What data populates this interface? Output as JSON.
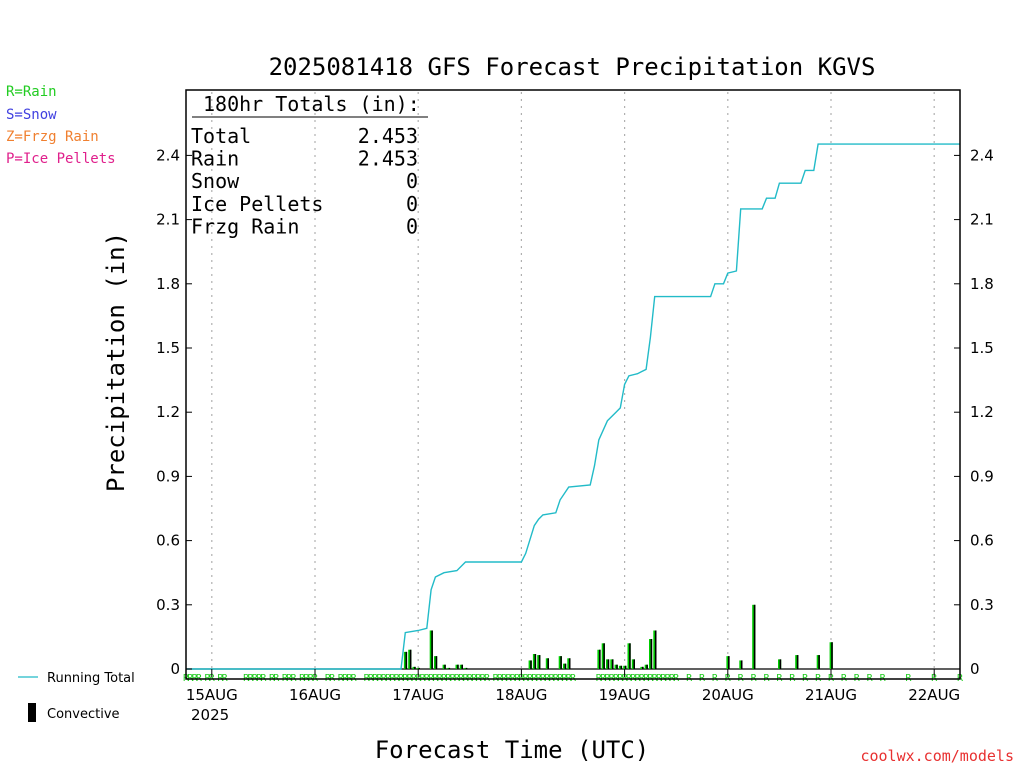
{
  "chart_data": {
    "type": "bar+line",
    "title": "2025081418 GFS Forecast Precipitation KGVS",
    "xlabel": "Forecast Time (UTC)",
    "ylabel": "Precipitation (in)",
    "ylim": [
      0,
      2.6
    ],
    "yticks": [
      0,
      0.3,
      0.6,
      0.9,
      1.2,
      1.5,
      1.8,
      2.1,
      2.4
    ],
    "ytick_labels": [
      "0",
      "0.3",
      "0.6",
      "0.9",
      "1.2",
      "1.5",
      "1.8",
      "2.1",
      "2.4"
    ],
    "xlim_hours": [
      0,
      180
    ],
    "x_ticks": [
      {
        "label": "15AUG",
        "hour": 6
      },
      {
        "label": "16AUG",
        "hour": 30
      },
      {
        "label": "17AUG",
        "hour": 54
      },
      {
        "label": "18AUG",
        "hour": 78
      },
      {
        "label": "19AUG",
        "hour": 102
      },
      {
        "label": "20AUG",
        "hour": 126
      },
      {
        "label": "21AUG",
        "hour": 150
      },
      {
        "label": "22AUG",
        "hour": 174
      }
    ],
    "year_label": "2025",
    "grid": "vertical-dotted",
    "type_legend": [
      {
        "label": "R=Rain",
        "color": "#22cc22"
      },
      {
        "label": "S=Snow",
        "color": "#4040e0"
      },
      {
        "label": "Z=Frzg Rain",
        "color": "#f08030"
      },
      {
        "label": "P=Ice Pellets",
        "color": "#e0208c"
      }
    ],
    "series_legend": {
      "running_total": "Running Total",
      "convective": "Convective"
    },
    "colors": {
      "running_total": "#22bbc8",
      "bar_fill": "#00cc00",
      "convective": "#000000",
      "rain_marker": "#22cc22"
    },
    "totals_box": {
      "title": "180hr Totals (in):",
      "rows": [
        {
          "label": "Total",
          "value": "2.453"
        },
        {
          "label": "Rain",
          "value": "2.453"
        },
        {
          "label": "Snow",
          "value": "0"
        },
        {
          "label": "Ice Pellets",
          "value": "0"
        },
        {
          "label": "Frzg Rain",
          "value": "0"
        }
      ]
    },
    "running_total": [
      {
        "hour": 0,
        "value": 0
      },
      {
        "hour": 50,
        "value": 0
      },
      {
        "hour": 51,
        "value": 0.17
      },
      {
        "hour": 54,
        "value": 0.18
      },
      {
        "hour": 56,
        "value": 0.19
      },
      {
        "hour": 57,
        "value": 0.37
      },
      {
        "hour": 58,
        "value": 0.43
      },
      {
        "hour": 60,
        "value": 0.45
      },
      {
        "hour": 63,
        "value": 0.46
      },
      {
        "hour": 65,
        "value": 0.5
      },
      {
        "hour": 78,
        "value": 0.5
      },
      {
        "hour": 79,
        "value": 0.54
      },
      {
        "hour": 81,
        "value": 0.67
      },
      {
        "hour": 82,
        "value": 0.7
      },
      {
        "hour": 83,
        "value": 0.72
      },
      {
        "hour": 86,
        "value": 0.73
      },
      {
        "hour": 87,
        "value": 0.79
      },
      {
        "hour": 88,
        "value": 0.82
      },
      {
        "hour": 89,
        "value": 0.85
      },
      {
        "hour": 94,
        "value": 0.86
      },
      {
        "hour": 95,
        "value": 0.95
      },
      {
        "hour": 96,
        "value": 1.07
      },
      {
        "hour": 98,
        "value": 1.16
      },
      {
        "hour": 100,
        "value": 1.2
      },
      {
        "hour": 101,
        "value": 1.22
      },
      {
        "hour": 102,
        "value": 1.33
      },
      {
        "hour": 103,
        "value": 1.37
      },
      {
        "hour": 105,
        "value": 1.38
      },
      {
        "hour": 106,
        "value": 1.39
      },
      {
        "hour": 107,
        "value": 1.4
      },
      {
        "hour": 108,
        "value": 1.55
      },
      {
        "hour": 109,
        "value": 1.74
      },
      {
        "hour": 122,
        "value": 1.74
      },
      {
        "hour": 123,
        "value": 1.8
      },
      {
        "hour": 125,
        "value": 1.8
      },
      {
        "hour": 126,
        "value": 1.85
      },
      {
        "hour": 128,
        "value": 1.86
      },
      {
        "hour": 129,
        "value": 2.15
      },
      {
        "hour": 134,
        "value": 2.15
      },
      {
        "hour": 135,
        "value": 2.2
      },
      {
        "hour": 137,
        "value": 2.2
      },
      {
        "hour": 138,
        "value": 2.27
      },
      {
        "hour": 143,
        "value": 2.27
      },
      {
        "hour": 144,
        "value": 2.33
      },
      {
        "hour": 146,
        "value": 2.33
      },
      {
        "hour": 147,
        "value": 2.453
      },
      {
        "hour": 180,
        "value": 2.453
      }
    ],
    "period_precip": [
      {
        "hour": 51,
        "value": 0.08
      },
      {
        "hour": 52,
        "value": 0.09
      },
      {
        "hour": 53,
        "value": 0.01
      },
      {
        "hour": 54,
        "value": 0.005
      },
      {
        "hour": 57,
        "value": 0.18
      },
      {
        "hour": 58,
        "value": 0.06
      },
      {
        "hour": 60,
        "value": 0.02
      },
      {
        "hour": 61,
        "value": 0.005
      },
      {
        "hour": 63,
        "value": 0.02
      },
      {
        "hour": 64,
        "value": 0.02
      },
      {
        "hour": 65,
        "value": 0.005
      },
      {
        "hour": 80,
        "value": 0.04
      },
      {
        "hour": 81,
        "value": 0.07
      },
      {
        "hour": 82,
        "value": 0.065
      },
      {
        "hour": 84,
        "value": 0.05
      },
      {
        "hour": 87,
        "value": 0.06
      },
      {
        "hour": 88,
        "value": 0.025
      },
      {
        "hour": 89,
        "value": 0.05
      },
      {
        "hour": 96,
        "value": 0.09
      },
      {
        "hour": 97,
        "value": 0.12
      },
      {
        "hour": 98,
        "value": 0.045
      },
      {
        "hour": 99,
        "value": 0.045
      },
      {
        "hour": 100,
        "value": 0.02
      },
      {
        "hour": 101,
        "value": 0.015
      },
      {
        "hour": 102,
        "value": 0.015
      },
      {
        "hour": 103,
        "value": 0.12
      },
      {
        "hour": 104,
        "value": 0.045
      },
      {
        "hour": 106,
        "value": 0.01
      },
      {
        "hour": 107,
        "value": 0.02
      },
      {
        "hour": 108,
        "value": 0.14
      },
      {
        "hour": 109,
        "value": 0.18
      },
      {
        "hour": 126,
        "value": 0.06
      },
      {
        "hour": 129,
        "value": 0.04
      },
      {
        "hour": 132,
        "value": 0.3
      },
      {
        "hour": 138,
        "value": 0.045
      },
      {
        "hour": 142,
        "value": 0.065
      },
      {
        "hour": 147,
        "value": 0.065
      },
      {
        "hour": 150,
        "value": 0.125
      }
    ],
    "rain_marker_hours": [
      0,
      1,
      2,
      3,
      5,
      6,
      8,
      9,
      14,
      15,
      16,
      17,
      18,
      20,
      21,
      23,
      24,
      25,
      27,
      28,
      29,
      30,
      33,
      34,
      36,
      37,
      38,
      39,
      42,
      43,
      44,
      45,
      46,
      47,
      48,
      49,
      50,
      51,
      52,
      53,
      54,
      55,
      56,
      57,
      58,
      59,
      60,
      61,
      62,
      63,
      64,
      65,
      66,
      67,
      68,
      69,
      70,
      72,
      73,
      74,
      75,
      76,
      77,
      78,
      79,
      80,
      81,
      82,
      83,
      84,
      85,
      86,
      87,
      88,
      89,
      90,
      96,
      97,
      98,
      99,
      100,
      101,
      102,
      103,
      104,
      105,
      106,
      107,
      108,
      109,
      110,
      111,
      112,
      113,
      114,
      117,
      120,
      123,
      126,
      129,
      132,
      135,
      138,
      141,
      144,
      147,
      150,
      153,
      156,
      159,
      162,
      168,
      174,
      180
    ]
  },
  "footer": {
    "watermark": "coolwx.com/models"
  }
}
